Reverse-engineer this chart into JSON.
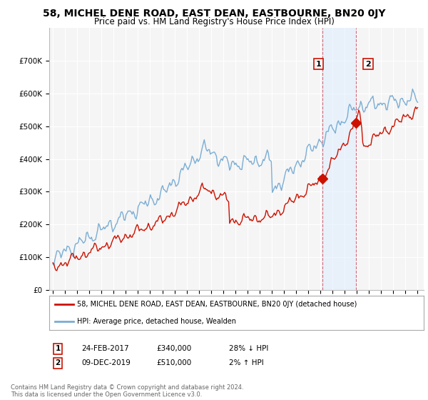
{
  "title": "58, MICHEL DENE ROAD, EAST DEAN, EASTBOURNE, BN20 0JY",
  "subtitle": "Price paid vs. HM Land Registry's House Price Index (HPI)",
  "background_color": "#ffffff",
  "plot_bg_color": "#f5f5f5",
  "grid_color": "#ffffff",
  "hpi_color": "#7aadd4",
  "price_color": "#cc1100",
  "ylim": [
    0,
    800000
  ],
  "yticks": [
    0,
    100000,
    200000,
    300000,
    400000,
    500000,
    600000,
    700000
  ],
  "ytick_labels": [
    "£0",
    "£100K",
    "£200K",
    "£300K",
    "£400K",
    "£500K",
    "£600K",
    "£700K"
  ],
  "xmin": 1994.7,
  "xmax": 2025.5,
  "legend_label_price": "58, MICHEL DENE ROAD, EAST DEAN, EASTBOURNE, BN20 0JY (detached house)",
  "legend_label_hpi": "HPI: Average price, detached house, Wealden",
  "transaction_1_date": "24-FEB-2017",
  "transaction_1_price": "£340,000",
  "transaction_1_hpi": "28% ↓ HPI",
  "transaction_2_date": "09-DEC-2019",
  "transaction_2_price": "£510,000",
  "transaction_2_hpi": "2% ↑ HPI",
  "footer": "Contains HM Land Registry data © Crown copyright and database right 2024.\nThis data is licensed under the Open Government Licence v3.0.",
  "marker1_x": 2017.15,
  "marker1_y": 340000,
  "marker2_x": 2019.93,
  "marker2_y": 510000
}
